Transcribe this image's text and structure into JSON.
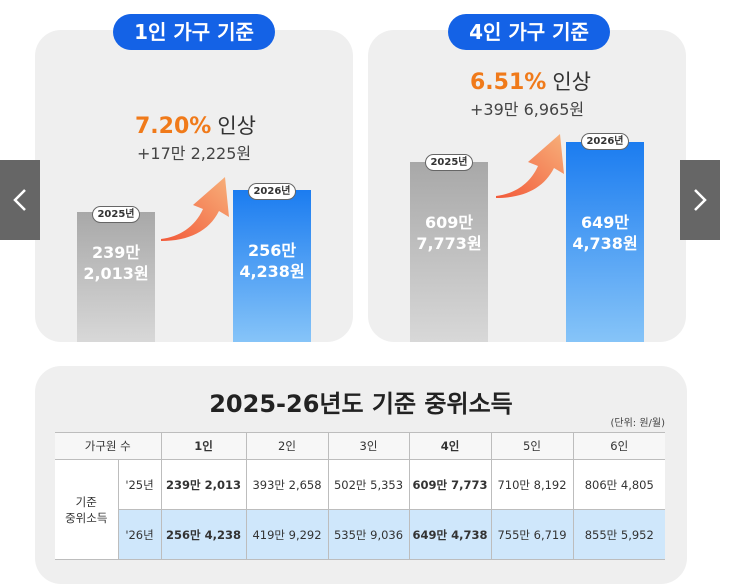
{
  "panels": [
    {
      "title": "1인 가구 기준",
      "percent": "7.20%",
      "increase_word": "인상",
      "difference": "+17만 2,225원",
      "bar_2025": {
        "year": "2025년",
        "line1": "239만",
        "line2": "2,013원"
      },
      "bar_2026": {
        "year": "2026년",
        "line1": "256만",
        "line2": "4,238원"
      }
    },
    {
      "title": "4인 가구 기준",
      "percent": "6.51%",
      "increase_word": "인상",
      "difference": "+39만 6,965원",
      "bar_2025": {
        "year": "2025년",
        "line1": "609만",
        "line2": "7,773원"
      },
      "bar_2026": {
        "year": "2026년",
        "line1": "649만",
        "line2": "4,738원"
      }
    }
  ],
  "colors": {
    "accent_blue": "#1462e6",
    "increase_orange": "#f07a1a",
    "row_2026_bg": "#cfe7fb"
  },
  "nav": {
    "prev_icon": "chevron-left-icon",
    "next_icon": "chevron-right-icon"
  },
  "table": {
    "title": "2025-26년도 기준 중위소득",
    "unit": "(단위: 원/월)",
    "header": [
      "가구원 수",
      "1인",
      "2인",
      "3인",
      "4인",
      "5인",
      "6인"
    ],
    "row_group_label_line1": "기준",
    "row_group_label_line2": "중위소득",
    "rows": [
      {
        "year": "'25년",
        "values": [
          "239만 2,013",
          "393만 2,658",
          "502만 5,353",
          "609만 7,773",
          "710만 8,192",
          "806만 4,805"
        ]
      },
      {
        "year": "'26년",
        "values": [
          "256만 4,238",
          "419만 9,292",
          "535만 9,036",
          "649만 4,738",
          "755만 6,719",
          "855만 5,952"
        ]
      }
    ]
  }
}
